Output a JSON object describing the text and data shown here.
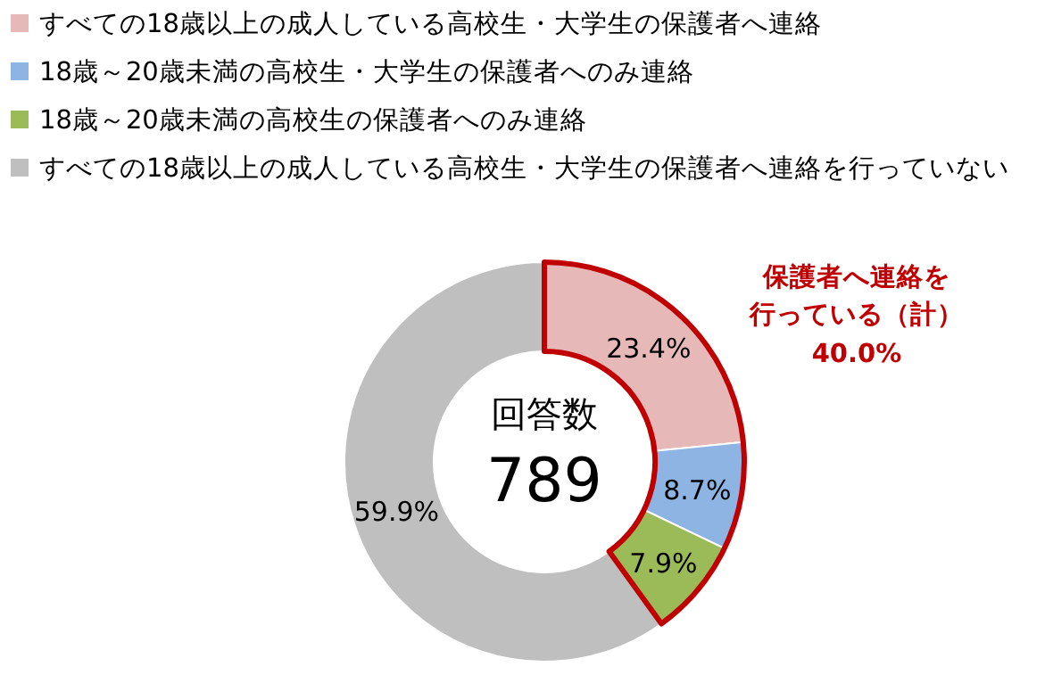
{
  "chart_data": {
    "type": "donut",
    "categories": [
      "すべての18歳以上の成人している高校生・大学生の保護者へ連絡",
      "18歳～20歳未満の高校生・大学生の保護者へのみ連絡",
      "18歳～20歳未満の高校生の保護者へのみ連絡",
      "すべての18歳以上の成人している高校生・大学生の保護者へ連絡を行っていない"
    ],
    "values": [
      23.4,
      8.7,
      7.9,
      59.9
    ],
    "colors": [
      "#e6b9b8",
      "#8eb4e3",
      "#9bbb59",
      "#bfbfbf"
    ],
    "value_labels": [
      "23.4%",
      "8.7%",
      "7.9%",
      "59.9%"
    ],
    "legend": "top",
    "annotations": [
      "回答数",
      "789",
      "保護者へ連絡を",
      "行っている（計）",
      "40.0%"
    ]
  }
}
